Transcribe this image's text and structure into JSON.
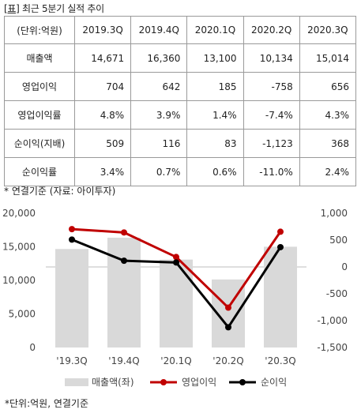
{
  "caption": {
    "bracket": "[표]",
    "text": "최근 5분기 실적 추이"
  },
  "table": {
    "unit_label": "(단위:억원)",
    "columns": [
      "2019.3Q",
      "2019.4Q",
      "2020.1Q",
      "2020.2Q",
      "2020.3Q"
    ],
    "rows": [
      {
        "label": "매출액",
        "values": [
          "14,671",
          "16,360",
          "13,100",
          "10,134",
          "15,014"
        ]
      },
      {
        "label": "영업이익",
        "values": [
          "704",
          "642",
          "185",
          "-758",
          "656"
        ]
      },
      {
        "label": "영업이익률",
        "values": [
          "4.8%",
          "3.9%",
          "1.4%",
          "-7.4%",
          "4.3%"
        ]
      },
      {
        "label": "순이익(지배)",
        "values": [
          "509",
          "116",
          "83",
          "-1,123",
          "368"
        ]
      },
      {
        "label": "순이익률",
        "values": [
          "3.4%",
          "0.7%",
          "0.6%",
          "-11.0%",
          "2.4%"
        ]
      }
    ]
  },
  "note": "* 연결기준 (자료: 아이투자)",
  "chart_data": {
    "type": "bar",
    "categories": [
      "'19.3Q",
      "'19.4Q",
      "'20.1Q",
      "'20.2Q",
      "'20.3Q"
    ],
    "series": [
      {
        "name": "매출액(좌)",
        "kind": "bar",
        "axis": "left",
        "color": "#d9d9d9",
        "values": [
          14671,
          16360,
          13100,
          10134,
          15014
        ]
      },
      {
        "name": "영업이익",
        "kind": "line",
        "axis": "right",
        "color": "#c00000",
        "values": [
          704,
          642,
          185,
          -758,
          656
        ]
      },
      {
        "name": "순이익",
        "kind": "line",
        "axis": "right",
        "color": "#000000",
        "values": [
          509,
          116,
          83,
          -1123,
          368
        ]
      }
    ],
    "left_axis": {
      "min": 0,
      "max": 20000,
      "ticks": [
        "0",
        "5,000",
        "10,000",
        "15,000",
        "20,000"
      ]
    },
    "right_axis": {
      "min": -1500,
      "max": 1000,
      "ticks": [
        "-1,500",
        "-1,000",
        "-500",
        "0",
        "500",
        "1,000"
      ]
    },
    "grid": false,
    "legend_position": "bottom"
  },
  "footnote": "*단위:억원, 연결기준"
}
